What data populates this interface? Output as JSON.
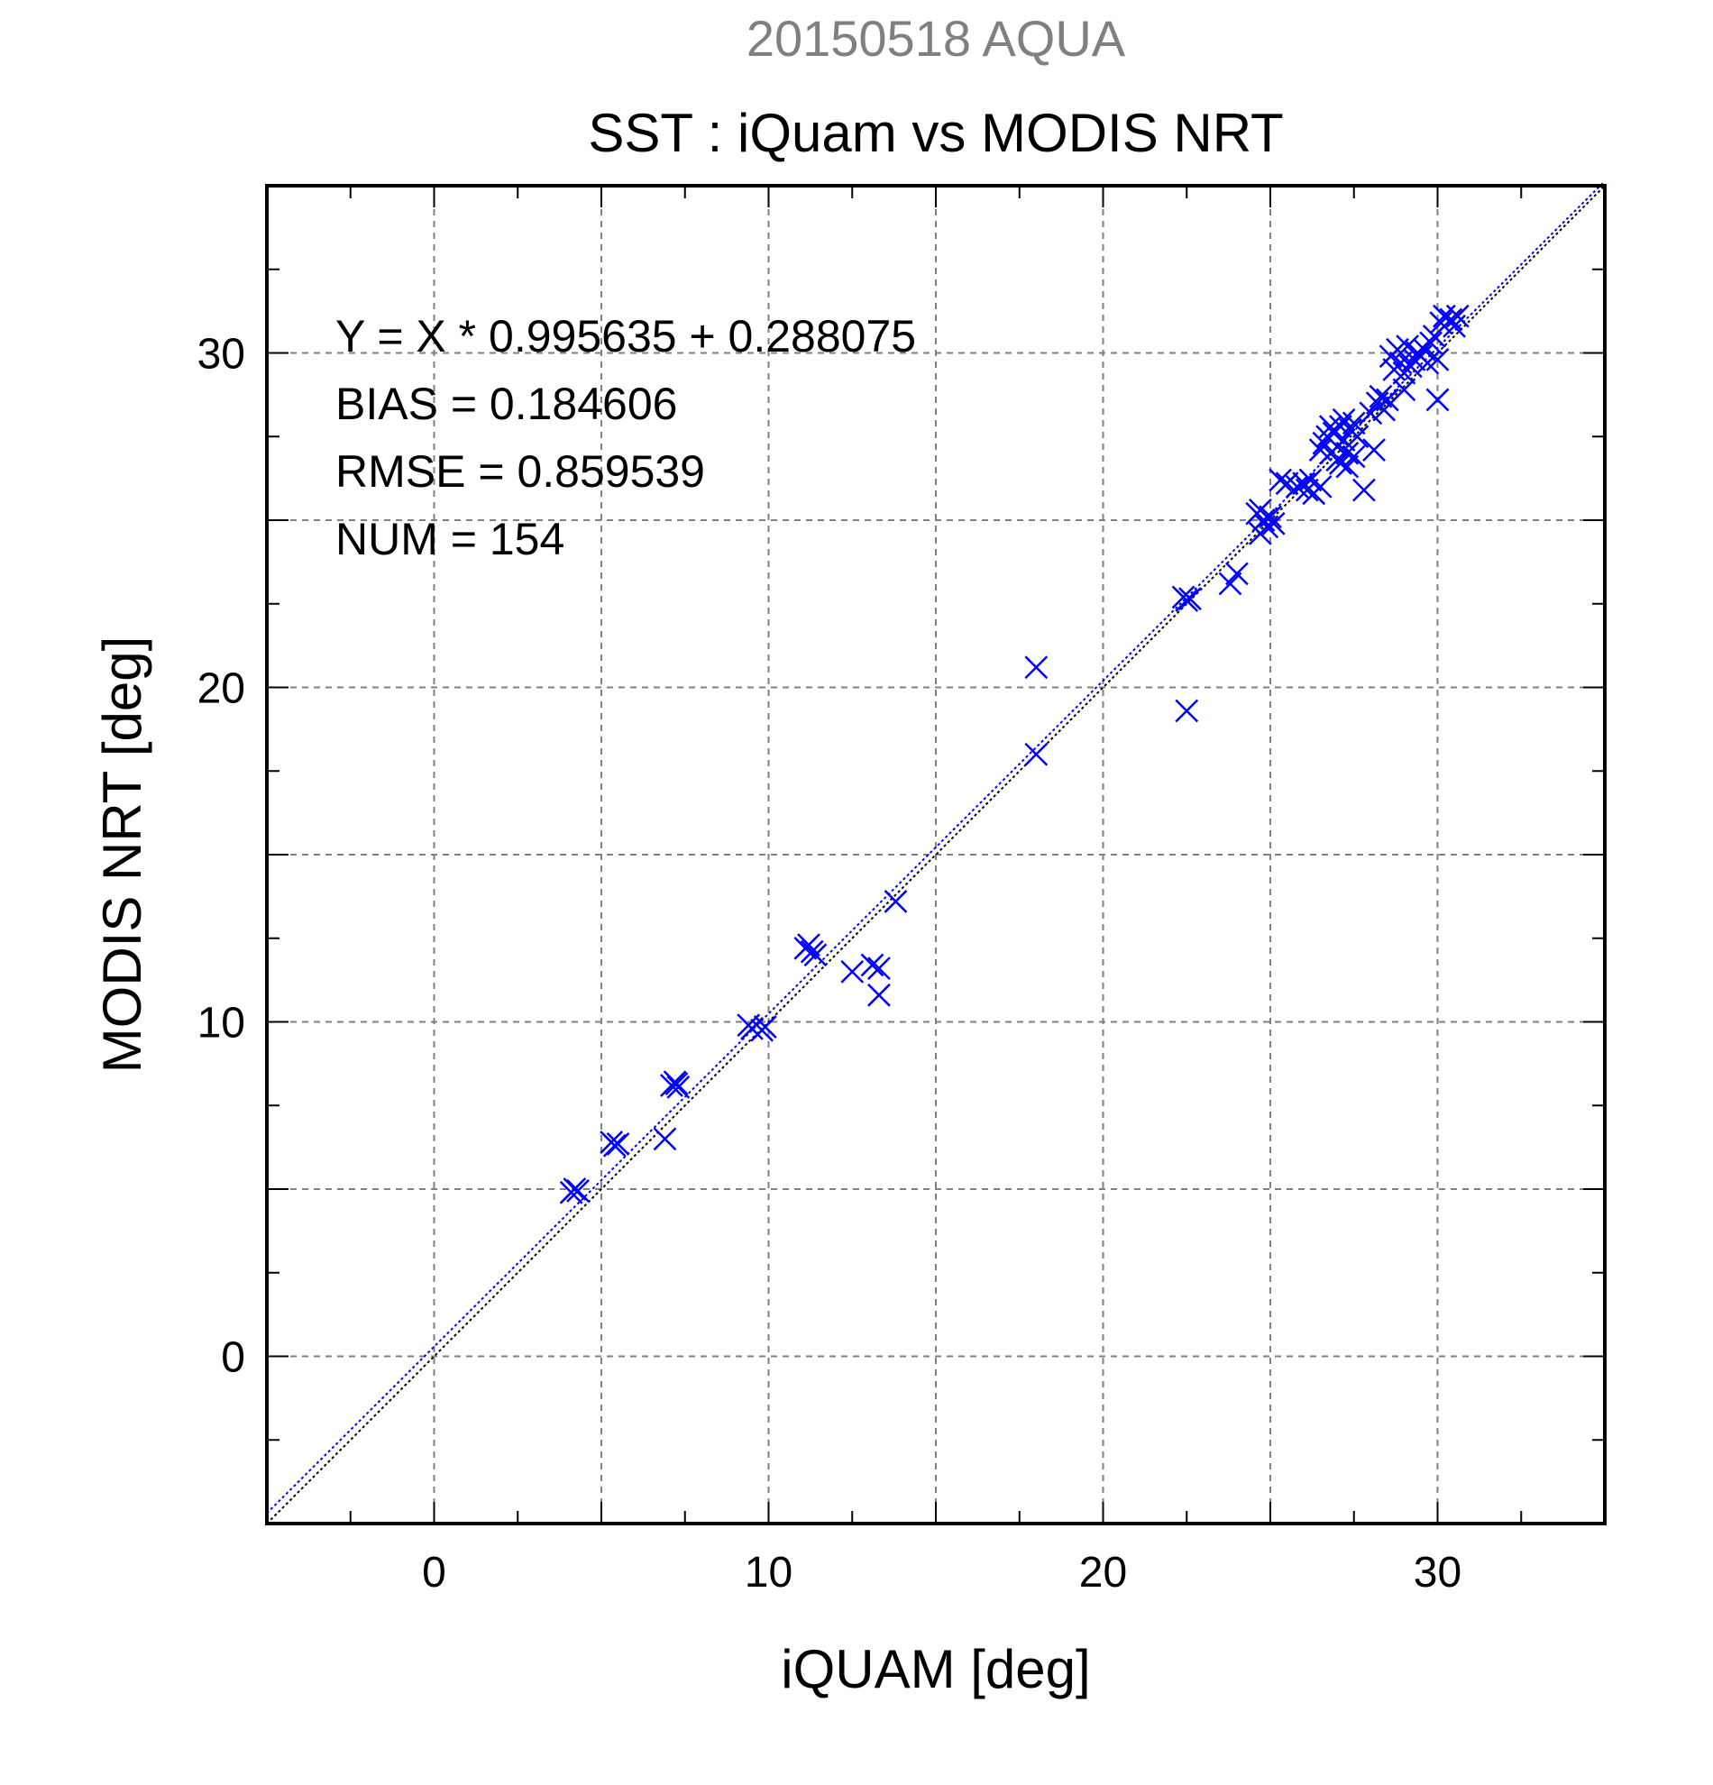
{
  "chart_data": {
    "type": "scatter",
    "supertitle": "20150518 AQUA",
    "title": "SST : iQuam vs MODIS NRT",
    "xlabel": "iQUAM [deg]",
    "ylabel": "MODIS NRT [deg]",
    "xlim": [
      -5,
      35
    ],
    "ylim": [
      -5,
      35
    ],
    "xticks": [
      0,
      10,
      20,
      30
    ],
    "yticks": [
      0,
      10,
      20,
      30
    ],
    "grid": true,
    "marker": "x",
    "point_color": "#0000ff",
    "stats": {
      "regression": "Y = X * 0.995635 + 0.288075",
      "bias": "BIAS = 0.184606",
      "rmse": "RMSE = 0.859539",
      "num": "NUM = 154"
    },
    "fit": {
      "slope": 0.995635,
      "intercept": 0.288075
    },
    "points": [
      [
        4.1,
        4.9
      ],
      [
        4.2,
        5.0
      ],
      [
        4.3,
        4.95
      ],
      [
        5.3,
        6.4
      ],
      [
        5.4,
        6.3
      ],
      [
        5.5,
        6.35
      ],
      [
        6.9,
        6.5
      ],
      [
        7.1,
        8.1
      ],
      [
        7.2,
        8.2
      ],
      [
        7.3,
        8.05
      ],
      [
        7.25,
        8.15
      ],
      [
        9.4,
        9.9
      ],
      [
        9.5,
        9.8
      ],
      [
        9.8,
        9.75
      ],
      [
        9.9,
        9.85
      ],
      [
        11.1,
        12.2
      ],
      [
        11.2,
        12.3
      ],
      [
        11.3,
        12.1
      ],
      [
        11.4,
        12.0
      ],
      [
        12.5,
        11.5
      ],
      [
        13.1,
        11.7
      ],
      [
        13.3,
        11.6
      ],
      [
        13.3,
        10.8
      ],
      [
        13.8,
        13.6
      ],
      [
        18.0,
        20.6
      ],
      [
        18.0,
        18.0
      ],
      [
        22.4,
        22.7
      ],
      [
        22.5,
        22.6
      ],
      [
        22.6,
        22.65
      ],
      [
        22.5,
        19.3
      ],
      [
        23.8,
        23.1
      ],
      [
        24.0,
        23.4
      ],
      [
        24.6,
        25.2
      ],
      [
        24.7,
        25.3
      ],
      [
        24.8,
        25.0
      ],
      [
        24.9,
        24.8
      ],
      [
        24.7,
        24.6
      ],
      [
        25.0,
        25.1
      ],
      [
        25.1,
        24.9
      ],
      [
        25.3,
        26.2
      ],
      [
        25.5,
        26.1
      ],
      [
        25.8,
        26.0
      ],
      [
        26.0,
        26.1
      ],
      [
        26.1,
        25.9
      ],
      [
        26.3,
        25.8
      ],
      [
        26.5,
        26.0
      ],
      [
        26.2,
        26.2
      ],
      [
        26.5,
        27.1
      ],
      [
        26.6,
        27.3
      ],
      [
        26.7,
        27.5
      ],
      [
        26.8,
        27.0
      ],
      [
        26.9,
        27.6
      ],
      [
        27.0,
        27.2
      ],
      [
        27.0,
        26.8
      ],
      [
        27.1,
        27.8
      ],
      [
        27.2,
        27.4
      ],
      [
        27.3,
        27.0
      ],
      [
        27.4,
        27.7
      ],
      [
        27.5,
        26.9
      ],
      [
        27.1,
        26.7
      ],
      [
        27.3,
        26.6
      ],
      [
        27.5,
        27.9
      ],
      [
        27.6,
        27.5
      ],
      [
        26.8,
        27.8
      ],
      [
        27.2,
        28.0
      ],
      [
        27.8,
        25.9
      ],
      [
        28.1,
        27.1
      ],
      [
        28.0,
        28.2
      ],
      [
        28.2,
        28.5
      ],
      [
        28.3,
        28.7
      ],
      [
        28.4,
        28.3
      ],
      [
        28.5,
        28.6
      ],
      [
        28.6,
        29.9
      ],
      [
        28.7,
        29.5
      ],
      [
        28.8,
        30.1
      ],
      [
        28.9,
        29.7
      ],
      [
        29.0,
        29.4
      ],
      [
        29.1,
        30.2
      ],
      [
        29.2,
        29.6
      ],
      [
        29.3,
        29.8
      ],
      [
        29.4,
        30.0
      ],
      [
        29.5,
        29.9
      ],
      [
        29.6,
        30.1
      ],
      [
        29.7,
        29.7
      ],
      [
        29.8,
        30.3
      ],
      [
        29.9,
        30.5
      ],
      [
        30.0,
        29.8
      ],
      [
        30.1,
        30.9
      ],
      [
        30.2,
        31.1
      ],
      [
        30.4,
        31.0
      ],
      [
        30.5,
        30.8
      ],
      [
        30.6,
        31.1
      ],
      [
        29.0,
        28.9
      ],
      [
        30.0,
        28.6
      ]
    ]
  }
}
